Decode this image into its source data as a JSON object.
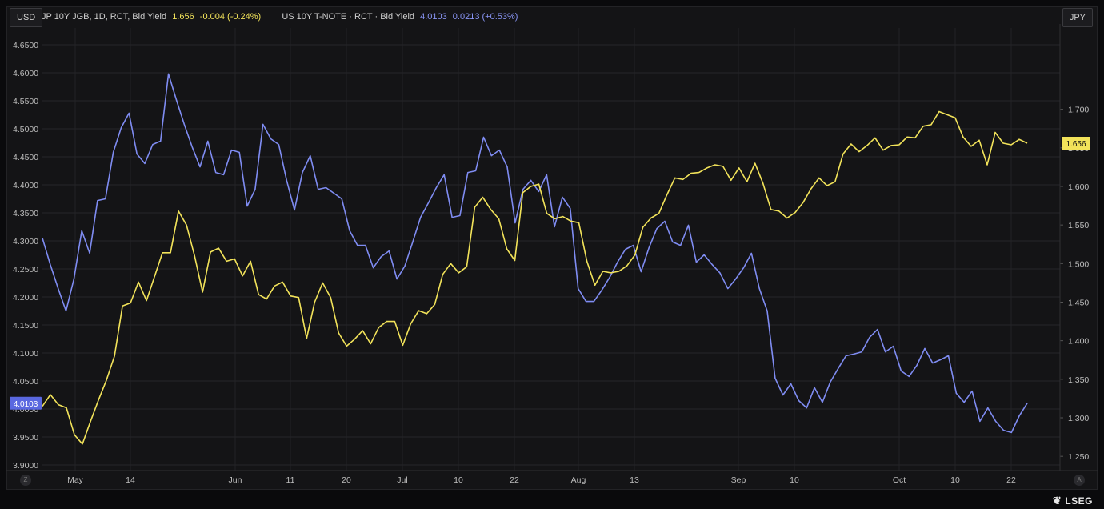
{
  "header": {
    "left_currency": "USD",
    "right_currency": "JPY",
    "series1_name": "JP 10Y JGB, 1D, RCT, Bid Yield",
    "series1_value": "1.656",
    "series1_change": "-0.004 (-0.24%)",
    "series2_name": "US 10Y T-NOTE · RCT · Bid Yield",
    "series2_value": "4.0103",
    "series2_change": "0.0213 (+0.53%)"
  },
  "nav": {
    "left_button": "Z",
    "right_button": "A"
  },
  "logo": {
    "mark": "❦",
    "text": "LSEG"
  },
  "colors": {
    "jgb": "#f2e35a",
    "ust": "#7f8cf2",
    "background": "#141416",
    "grid": "#2a2a2e"
  },
  "chart_data": {
    "type": "line",
    "x_tick_labels": [
      "May",
      "14",
      "Jun",
      "11",
      "20",
      "Jul",
      "10",
      "22",
      "Aug",
      "13",
      "Sep",
      "10",
      "Oct",
      "10",
      "22"
    ],
    "left_axis": {
      "label": "USD",
      "ylim": [
        3.89,
        4.68
      ],
      "ticks": [
        "4.6500",
        "4.6000",
        "4.5500",
        "4.5000",
        "4.4500",
        "4.4000",
        "4.3500",
        "4.3000",
        "4.2500",
        "4.2000",
        "4.1500",
        "4.1000",
        "4.0500",
        "4.0000",
        "3.9500",
        "3.9000"
      ]
    },
    "right_axis": {
      "label": "JPY",
      "ylim": [
        1.2315,
        1.8055
      ],
      "ticks": [
        "1.700",
        "1.650",
        "1.600",
        "1.550",
        "1.500",
        "1.450",
        "1.400",
        "1.350",
        "1.300",
        "1.250"
      ]
    },
    "grid": true,
    "series": [
      {
        "name": "US 10Y T-NOTE · RCT · Bid Yield",
        "axis": "left",
        "last_label": "4.0103",
        "values": [
          4.305,
          4.258,
          4.215,
          4.175,
          4.232,
          4.318,
          4.278,
          4.372,
          4.375,
          4.458,
          4.502,
          4.528,
          4.455,
          4.438,
          4.472,
          4.478,
          4.598,
          4.552,
          4.508,
          4.468,
          4.432,
          4.478,
          4.422,
          4.418,
          4.462,
          4.458,
          4.362,
          4.392,
          4.508,
          4.482,
          4.472,
          4.408,
          4.355,
          4.422,
          4.452,
          4.392,
          4.395,
          4.385,
          4.375,
          4.318,
          4.292,
          4.292,
          4.252,
          4.272,
          4.282,
          4.232,
          4.255,
          4.298,
          4.342,
          4.368,
          4.395,
          4.418,
          4.342,
          4.345,
          4.422,
          4.425,
          4.485,
          4.452,
          4.462,
          4.432,
          4.332,
          4.392,
          4.408,
          4.388,
          4.418,
          4.325,
          4.378,
          4.358,
          4.215,
          4.192,
          4.192,
          4.212,
          4.235,
          4.262,
          4.285,
          4.292,
          4.245,
          4.288,
          4.322,
          4.335,
          4.298,
          4.292,
          4.328,
          4.262,
          4.275,
          4.258,
          4.243,
          4.215,
          4.232,
          4.252,
          4.278,
          4.215,
          4.175,
          4.055,
          4.025,
          4.045,
          4.015,
          4.002,
          4.038,
          4.012,
          4.048,
          4.072,
          4.095,
          4.098,
          4.102,
          4.128,
          4.142,
          4.102,
          4.112,
          4.068,
          4.058,
          4.078,
          4.108,
          4.082,
          4.088,
          4.095,
          4.028,
          4.012,
          4.032,
          3.978,
          4.002,
          3.978,
          3.962,
          3.958,
          3.988,
          4.0103
        ]
      },
      {
        "name": "JP 10Y JGB, 1D, RCT, Bid Yield",
        "axis": "right",
        "last_label": "1.656",
        "values": [
          1.315,
          1.33,
          1.317,
          1.313,
          1.278,
          1.266,
          1.295,
          1.323,
          1.349,
          1.38,
          1.445,
          1.449,
          1.476,
          1.452,
          1.483,
          1.514,
          1.514,
          1.568,
          1.55,
          1.51,
          1.463,
          1.515,
          1.52,
          1.503,
          1.506,
          1.484,
          1.503,
          1.46,
          1.454,
          1.471,
          1.476,
          1.458,
          1.456,
          1.403,
          1.45,
          1.475,
          1.456,
          1.41,
          1.393,
          1.402,
          1.413,
          1.396,
          1.417,
          1.425,
          1.425,
          1.394,
          1.422,
          1.439,
          1.435,
          1.447,
          1.486,
          1.5,
          1.488,
          1.496,
          1.573,
          1.586,
          1.57,
          1.558,
          1.519,
          1.504,
          1.592,
          1.6,
          1.603,
          1.565,
          1.558,
          1.561,
          1.555,
          1.553,
          1.503,
          1.472,
          1.49,
          1.488,
          1.49,
          1.497,
          1.511,
          1.547,
          1.559,
          1.565,
          1.589,
          1.611,
          1.609,
          1.617,
          1.618,
          1.624,
          1.628,
          1.626,
          1.608,
          1.624,
          1.606,
          1.63,
          1.604,
          1.57,
          1.568,
          1.559,
          1.566,
          1.579,
          1.597,
          1.611,
          1.601,
          1.606,
          1.642,
          1.655,
          1.645,
          1.653,
          1.663,
          1.647,
          1.653,
          1.654,
          1.664,
          1.663,
          1.678,
          1.68,
          1.697,
          1.693,
          1.689,
          1.664,
          1.652,
          1.66,
          1.628,
          1.67,
          1.656,
          1.654,
          1.661,
          1.656
        ]
      }
    ]
  }
}
